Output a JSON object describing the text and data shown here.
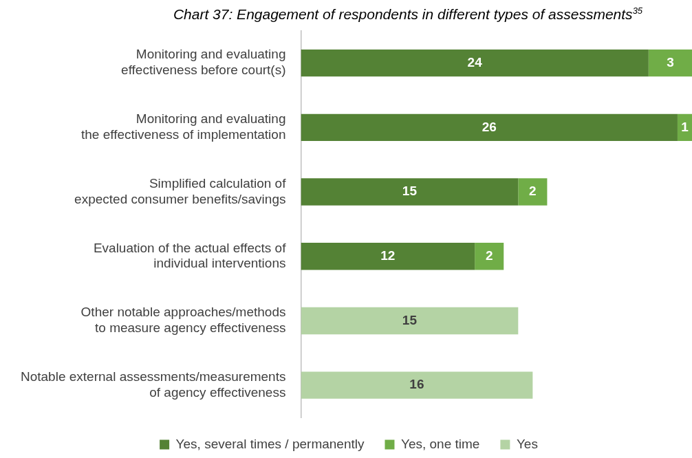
{
  "chart_data": {
    "type": "bar",
    "orientation": "horizontal",
    "stacked": true,
    "title": "Chart 37: Engagement of respondents in different types of assessments$^{35}$",
    "categories": [
      "Monitoring and evaluating\neffectiveness before court(s)",
      "Monitoring and evaluating\nthe effectiveness of implementation",
      "Simplified calculation of\nexpected consumer benefits/savings",
      "Evaluation of the actual effects of\nindividual interventions",
      "Other notable approaches/methods\nto measure agency effectiveness",
      "Notable external assessments/measurements\nof agency effectiveness"
    ],
    "series": [
      {
        "name": "Yes, several times / permanently",
        "color": "#548235",
        "values": [
          24,
          26,
          15,
          12,
          null,
          null
        ]
      },
      {
        "name": "Yes, one time",
        "color": "#70ad47",
        "values": [
          3,
          1,
          2,
          2,
          null,
          null
        ]
      },
      {
        "name": "Yes",
        "color": "#b4d3a4",
        "values": [
          null,
          null,
          null,
          null,
          15,
          16
        ]
      }
    ],
    "data_labels": true,
    "legend": "bottom",
    "grid": false,
    "tick_labels": "y"
  }
}
